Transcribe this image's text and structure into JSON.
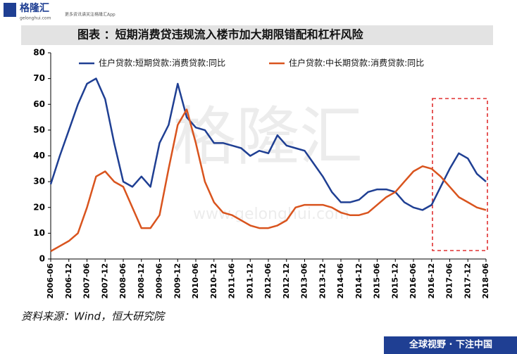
{
  "branding": {
    "logo": "格隆汇",
    "tagline": "更多资讯请关注格隆汇App",
    "url": "gelonghui.com",
    "slogan": "全球视野 · 下注中国",
    "watermark": "格隆汇",
    "watermark_url": "www.gelonghui.com"
  },
  "chart_data": {
    "type": "line",
    "title": "图表 ：短期消费贷违规流入楼市加大期限错配和杠杆风险",
    "source": "资料来源：Wind，恒大研究院",
    "categories": [
      "2006-06",
      null,
      "2006-12",
      null,
      "2007-06",
      null,
      "2007-12",
      null,
      "2008-06",
      null,
      "2008-12",
      null,
      "2009-06",
      null,
      "2009-12",
      null,
      "2010-06",
      null,
      "2010-12",
      null,
      "2011-06",
      null,
      "2011-12",
      null,
      "2012-06",
      null,
      "2012-12",
      null,
      "2013-06",
      null,
      "2013-12",
      null,
      "2014-06",
      null,
      "2014-12",
      null,
      "2015-06",
      null,
      "2015-12",
      null,
      "2016-06",
      null,
      "2016-12",
      null,
      "2017-06",
      null,
      "2017-12",
      null,
      "2018-06"
    ],
    "series": [
      {
        "name": "住户贷款:短期贷款:消费贷款:同比",
        "color": "#1f3f93",
        "values": [
          29,
          40,
          50,
          60,
          68,
          70,
          62,
          45,
          30,
          28,
          32,
          28,
          45,
          52,
          68,
          55,
          51,
          50,
          45,
          45,
          44,
          43,
          40,
          42,
          41,
          48,
          44,
          43,
          42,
          37,
          32,
          26,
          22,
          22,
          23,
          26,
          27,
          27,
          26,
          22,
          20,
          19,
          21,
          28,
          35,
          41,
          39,
          33,
          30
        ]
      },
      {
        "name": "住户贷款:中长期贷款:消费贷款:同比",
        "color": "#d9541e",
        "values": [
          3,
          5,
          7,
          10,
          20,
          32,
          34,
          30,
          28,
          20,
          12,
          12,
          17,
          35,
          52,
          58,
          45,
          30,
          22,
          18,
          17,
          15,
          13,
          12,
          12,
          13,
          15,
          20,
          21,
          21,
          21,
          20,
          18,
          17,
          17,
          18,
          21,
          24,
          26,
          30,
          34,
          36,
          35,
          32,
          28,
          24,
          22,
          20,
          19
        ]
      }
    ],
    "ylim": [
      0,
      80
    ],
    "yticks": [
      0,
      10,
      20,
      30,
      40,
      50,
      60,
      70,
      80
    ]
  }
}
